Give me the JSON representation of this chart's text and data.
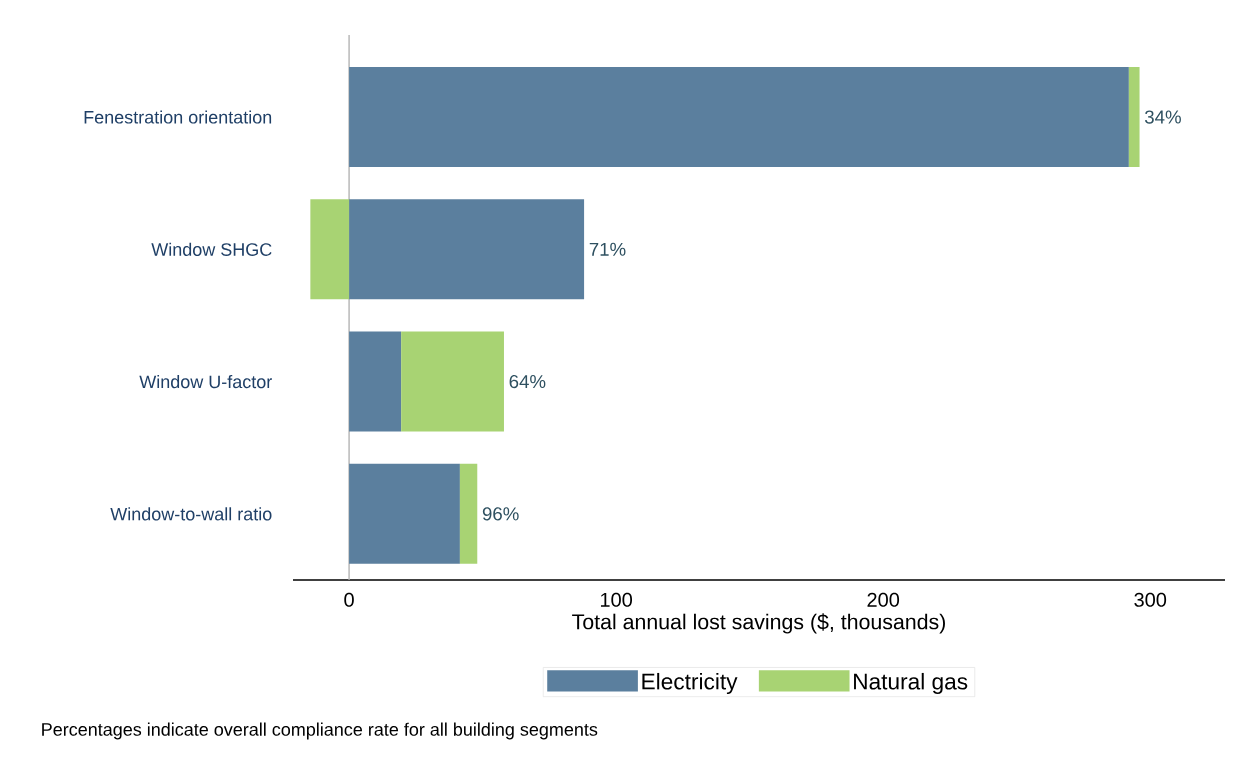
{
  "chart_data": {
    "type": "bar",
    "orientation": "horizontal",
    "stacked": true,
    "categories": [
      "Fenestration orientation",
      "Window SHGC",
      "Window U-factor",
      "Window-to-wall ratio"
    ],
    "series": [
      {
        "name": "Electricity",
        "color": "#5b7f9e",
        "values": [
          292,
          88,
          19.5,
          41.5
        ]
      },
      {
        "name": "Natural gas",
        "color": "#a8d373",
        "values": [
          4,
          -14.5,
          38.5,
          6.5
        ]
      }
    ],
    "xlim": [
      -21,
      328
    ],
    "xticks": [
      0,
      100,
      200,
      300
    ],
    "xlabel": "Total annual lost savings ($, thousands)",
    "ref_lines": [
      {
        "axis": "x",
        "value": 0,
        "color": "#b0b0b0"
      }
    ],
    "legend": "bottom",
    "grid": false,
    "annotations": [
      {
        "text": "34%",
        "x": 296,
        "y": "Fenestration orientation"
      },
      {
        "text": "71%",
        "x": 88,
        "y": "Window SHGC"
      },
      {
        "text": "64%",
        "x": 58,
        "y": "Window U-factor"
      },
      {
        "text": "96%",
        "x": 48,
        "y": "Window-to-wall ratio"
      },
      "Percentages indicate overall compliance rate for all building segments"
    ]
  }
}
